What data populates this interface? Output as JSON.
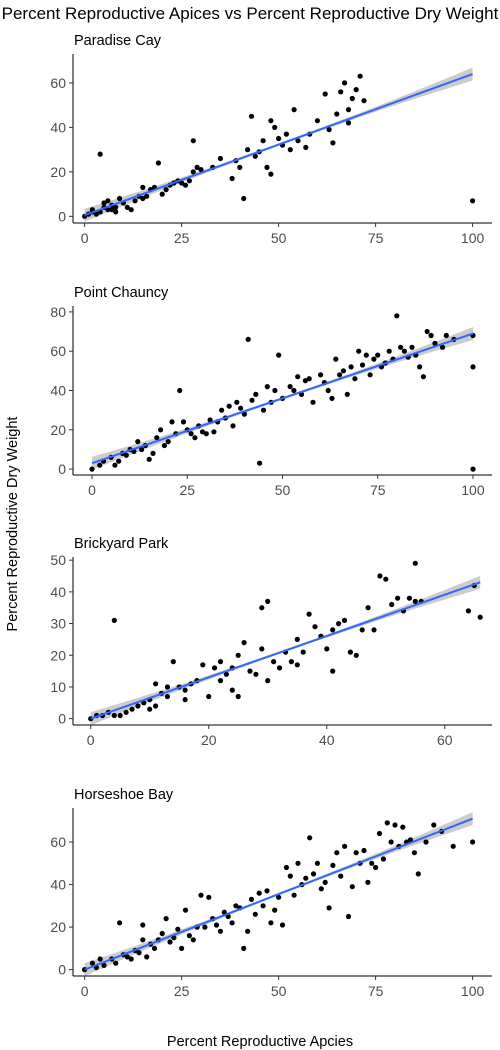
{
  "figure": {
    "title": "Percent Reproductive Apices vs Percent Reproductive Dry Weight",
    "xlabel": "Percent Reproductive Apcies",
    "ylabel": "Percent Reproductive Dry Weight"
  },
  "chart_data": [
    {
      "type": "scatter",
      "title": "Paradise Cay",
      "xlim": [
        -3,
        105
      ],
      "ylim": [
        -3,
        73
      ],
      "xticks": [
        0,
        25,
        50,
        75,
        100
      ],
      "yticks": [
        0,
        20,
        40,
        60
      ],
      "grid": false,
      "fit": {
        "method": "linear",
        "x": [
          0,
          100
        ],
        "y": [
          0.5,
          64
        ],
        "ci_band": true,
        "band_color": "#cccccc",
        "line_color": "#3366ff"
      },
      "point_color": "#000000",
      "points": [
        [
          0,
          0
        ],
        [
          1,
          1
        ],
        [
          2,
          2
        ],
        [
          3,
          1
        ],
        [
          4,
          2
        ],
        [
          2,
          3
        ],
        [
          5,
          4
        ],
        [
          6,
          3
        ],
        [
          7,
          5
        ],
        [
          8,
          4
        ],
        [
          5,
          6
        ],
        [
          6,
          7
        ],
        [
          9,
          8
        ],
        [
          10,
          6
        ],
        [
          11,
          4
        ],
        [
          12,
          3
        ],
        [
          7,
          3
        ],
        [
          8,
          2
        ],
        [
          4,
          28
        ],
        [
          13,
          7
        ],
        [
          14,
          9
        ],
        [
          15,
          13
        ],
        [
          16,
          9
        ],
        [
          17,
          12
        ],
        [
          18,
          13
        ],
        [
          19,
          24
        ],
        [
          15,
          8
        ],
        [
          20,
          10
        ],
        [
          21,
          12
        ],
        [
          22,
          14
        ],
        [
          23,
          15
        ],
        [
          24,
          16
        ],
        [
          25,
          15
        ],
        [
          26,
          14
        ],
        [
          27,
          16
        ],
        [
          28,
          20
        ],
        [
          28,
          34
        ],
        [
          29,
          22
        ],
        [
          30,
          21
        ],
        [
          33,
          22
        ],
        [
          35,
          26
        ],
        [
          38,
          17
        ],
        [
          39,
          25
        ],
        [
          40,
          22
        ],
        [
          41,
          8
        ],
        [
          42,
          30
        ],
        [
          43,
          45
        ],
        [
          44,
          27
        ],
        [
          45,
          29
        ],
        [
          46,
          34
        ],
        [
          47,
          22
        ],
        [
          48,
          19
        ],
        [
          48,
          43
        ],
        [
          49,
          40
        ],
        [
          50,
          35
        ],
        [
          51,
          32
        ],
        [
          52,
          37
        ],
        [
          53,
          30
        ],
        [
          54,
          48
        ],
        [
          55,
          34
        ],
        [
          57,
          31
        ],
        [
          58,
          37
        ],
        [
          60,
          43
        ],
        [
          62,
          55
        ],
        [
          63,
          39
        ],
        [
          64,
          33
        ],
        [
          65,
          46
        ],
        [
          66,
          56
        ],
        [
          67,
          60
        ],
        [
          68,
          48
        ],
        [
          68,
          42
        ],
        [
          69,
          53
        ],
        [
          70,
          57
        ],
        [
          71,
          63
        ],
        [
          72,
          52
        ],
        [
          100,
          7
        ]
      ]
    },
    {
      "type": "scatter",
      "title": "Point Chauncy",
      "xlim": [
        -5,
        105
      ],
      "ylim": [
        -3,
        83
      ],
      "xticks": [
        0,
        25,
        50,
        75,
        100
      ],
      "yticks": [
        0,
        20,
        40,
        60,
        80
      ],
      "grid": false,
      "fit": {
        "method": "linear",
        "x": [
          0,
          100
        ],
        "y": [
          3,
          69
        ],
        "ci_band": true,
        "band_color": "#cccccc",
        "line_color": "#3366ff"
      },
      "point_color": "#000000",
      "points": [
        [
          0,
          0
        ],
        [
          2,
          2
        ],
        [
          3,
          4
        ],
        [
          5,
          6
        ],
        [
          6,
          2
        ],
        [
          7,
          4
        ],
        [
          8,
          8
        ],
        [
          9,
          7
        ],
        [
          10,
          10
        ],
        [
          11,
          9
        ],
        [
          12,
          14
        ],
        [
          13,
          10
        ],
        [
          14,
          12
        ],
        [
          15,
          5
        ],
        [
          16,
          8
        ],
        [
          17,
          16
        ],
        [
          18,
          20
        ],
        [
          19,
          12
        ],
        [
          20,
          14
        ],
        [
          21,
          24
        ],
        [
          22,
          18
        ],
        [
          23,
          40
        ],
        [
          24,
          24
        ],
        [
          25,
          20
        ],
        [
          26,
          18
        ],
        [
          27,
          16
        ],
        [
          28,
          22
        ],
        [
          29,
          19
        ],
        [
          30,
          18
        ],
        [
          31,
          25
        ],
        [
          32,
          19
        ],
        [
          33,
          24
        ],
        [
          34,
          30
        ],
        [
          35,
          26
        ],
        [
          36,
          32
        ],
        [
          37,
          22
        ],
        [
          38,
          34
        ],
        [
          39,
          31
        ],
        [
          40,
          28
        ],
        [
          41,
          66
        ],
        [
          42,
          35
        ],
        [
          43,
          38
        ],
        [
          44,
          3
        ],
        [
          45,
          30
        ],
        [
          46,
          42
        ],
        [
          47,
          34
        ],
        [
          48,
          40
        ],
        [
          49,
          58
        ],
        [
          50,
          36
        ],
        [
          52,
          42
        ],
        [
          53,
          40
        ],
        [
          54,
          47
        ],
        [
          55,
          38
        ],
        [
          56,
          45
        ],
        [
          57,
          46
        ],
        [
          58,
          34
        ],
        [
          60,
          48
        ],
        [
          61,
          44
        ],
        [
          62,
          40
        ],
        [
          63,
          36
        ],
        [
          64,
          56
        ],
        [
          65,
          48
        ],
        [
          66,
          50
        ],
        [
          67,
          38
        ],
        [
          68,
          52
        ],
        [
          69,
          46
        ],
        [
          70,
          60
        ],
        [
          71,
          53
        ],
        [
          72,
          58
        ],
        [
          73,
          48
        ],
        [
          74,
          56
        ],
        [
          75,
          58
        ],
        [
          76,
          52
        ],
        [
          77,
          54
        ],
        [
          78,
          60
        ],
        [
          79,
          56
        ],
        [
          80,
          78
        ],
        [
          81,
          62
        ],
        [
          82,
          60
        ],
        [
          83,
          57
        ],
        [
          84,
          62
        ],
        [
          85,
          58
        ],
        [
          86,
          52
        ],
        [
          87,
          47
        ],
        [
          88,
          70
        ],
        [
          89,
          68
        ],
        [
          90,
          64
        ],
        [
          92,
          62
        ],
        [
          93,
          68
        ],
        [
          95,
          66
        ],
        [
          100,
          68
        ],
        [
          100,
          52
        ],
        [
          100,
          0
        ]
      ]
    },
    {
      "type": "scatter",
      "title": "Brickyard Park",
      "xlim": [
        -3,
        68
      ],
      "ylim": [
        -2,
        51
      ],
      "xticks": [
        0,
        20,
        40,
        60
      ],
      "yticks": [
        0,
        10,
        20,
        30,
        40,
        50
      ],
      "grid": false,
      "fit": {
        "method": "linear",
        "x": [
          0,
          66
        ],
        "y": [
          0,
          43
        ],
        "ci_band": true,
        "band_color": "#cccccc",
        "line_color": "#3366ff"
      },
      "point_color": "#000000",
      "points": [
        [
          0,
          0
        ],
        [
          1,
          1
        ],
        [
          2,
          1
        ],
        [
          3,
          2
        ],
        [
          4,
          1
        ],
        [
          5,
          1
        ],
        [
          4,
          31
        ],
        [
          6,
          2
        ],
        [
          7,
          3
        ],
        [
          8,
          4
        ],
        [
          9,
          5
        ],
        [
          10,
          6
        ],
        [
          10,
          3
        ],
        [
          11,
          4
        ],
        [
          11,
          11
        ],
        [
          12,
          8
        ],
        [
          13,
          7
        ],
        [
          13,
          10
        ],
        [
          14,
          18
        ],
        [
          15,
          10
        ],
        [
          16,
          6
        ],
        [
          16,
          9
        ],
        [
          17,
          11
        ],
        [
          18,
          12
        ],
        [
          19,
          17
        ],
        [
          20,
          7
        ],
        [
          21,
          16
        ],
        [
          22,
          12
        ],
        [
          22,
          18
        ],
        [
          23,
          14
        ],
        [
          24,
          16
        ],
        [
          24,
          9
        ],
        [
          25,
          20
        ],
        [
          25,
          7
        ],
        [
          26,
          24
        ],
        [
          27,
          15
        ],
        [
          28,
          14
        ],
        [
          29,
          22
        ],
        [
          29,
          35
        ],
        [
          30,
          37
        ],
        [
          30,
          12
        ],
        [
          31,
          18
        ],
        [
          32,
          16
        ],
        [
          33,
          21
        ],
        [
          34,
          18
        ],
        [
          35,
          25
        ],
        [
          35,
          17
        ],
        [
          36,
          21
        ],
        [
          37,
          33
        ],
        [
          38,
          29
        ],
        [
          39,
          26
        ],
        [
          40,
          22
        ],
        [
          41,
          15
        ],
        [
          41,
          28
        ],
        [
          42,
          30
        ],
        [
          43,
          31
        ],
        [
          44,
          21
        ],
        [
          45,
          20
        ],
        [
          46,
          28
        ],
        [
          47,
          35
        ],
        [
          48,
          28
        ],
        [
          49,
          45
        ],
        [
          50,
          44
        ],
        [
          51,
          36
        ],
        [
          52,
          38
        ],
        [
          53,
          34
        ],
        [
          54,
          38
        ],
        [
          55,
          37
        ],
        [
          55,
          49
        ],
        [
          56,
          37
        ],
        [
          64,
          34
        ],
        [
          65,
          42
        ],
        [
          66,
          32
        ]
      ]
    },
    {
      "type": "scatter",
      "title": "Horseshoe Bay",
      "xlim": [
        -3,
        105
      ],
      "ylim": [
        -3,
        76
      ],
      "xticks": [
        0,
        25,
        50,
        75,
        100
      ],
      "yticks": [
        0,
        20,
        40,
        60
      ],
      "grid": false,
      "fit": {
        "method": "linear",
        "x": [
          0,
          100
        ],
        "y": [
          0,
          71
        ],
        "ci_band": true,
        "band_color": "#cccccc",
        "line_color": "#3366ff"
      },
      "point_color": "#000000",
      "points": [
        [
          0,
          0
        ],
        [
          2,
          3
        ],
        [
          3,
          1
        ],
        [
          4,
          5
        ],
        [
          5,
          2
        ],
        [
          7,
          5
        ],
        [
          8,
          3
        ],
        [
          9,
          22
        ],
        [
          10,
          7
        ],
        [
          11,
          6
        ],
        [
          12,
          5
        ],
        [
          13,
          9
        ],
        [
          14,
          8
        ],
        [
          15,
          14
        ],
        [
          15,
          21
        ],
        [
          16,
          6
        ],
        [
          17,
          12
        ],
        [
          18,
          10
        ],
        [
          19,
          14
        ],
        [
          20,
          17
        ],
        [
          21,
          24
        ],
        [
          22,
          13
        ],
        [
          23,
          15
        ],
        [
          24,
          19
        ],
        [
          25,
          10
        ],
        [
          26,
          28
        ],
        [
          27,
          16
        ],
        [
          28,
          14
        ],
        [
          29,
          20
        ],
        [
          30,
          35
        ],
        [
          31,
          20
        ],
        [
          32,
          34
        ],
        [
          33,
          24
        ],
        [
          34,
          21
        ],
        [
          35,
          18
        ],
        [
          36,
          27
        ],
        [
          37,
          25
        ],
        [
          38,
          22
        ],
        [
          39,
          30
        ],
        [
          40,
          29
        ],
        [
          41,
          10
        ],
        [
          42,
          18
        ],
        [
          43,
          33
        ],
        [
          44,
          26
        ],
        [
          45,
          36
        ],
        [
          46,
          30
        ],
        [
          47,
          37
        ],
        [
          48,
          22
        ],
        [
          49,
          28
        ],
        [
          50,
          34
        ],
        [
          51,
          21
        ],
        [
          52,
          48
        ],
        [
          53,
          44
        ],
        [
          54,
          35
        ],
        [
          55,
          50
        ],
        [
          56,
          40
        ],
        [
          57,
          43
        ],
        [
          58,
          62
        ],
        [
          59,
          45
        ],
        [
          60,
          50
        ],
        [
          61,
          38
        ],
        [
          62,
          41
        ],
        [
          63,
          29
        ],
        [
          64,
          49
        ],
        [
          65,
          55
        ],
        [
          66,
          44
        ],
        [
          67,
          58
        ],
        [
          68,
          25
        ],
        [
          69,
          39
        ],
        [
          70,
          55
        ],
        [
          71,
          50
        ],
        [
          72,
          56
        ],
        [
          73,
          41
        ],
        [
          74,
          50
        ],
        [
          75,
          48
        ],
        [
          76,
          64
        ],
        [
          77,
          52
        ],
        [
          78,
          69
        ],
        [
          79,
          60
        ],
        [
          80,
          68
        ],
        [
          81,
          58
        ],
        [
          82,
          67
        ],
        [
          83,
          60
        ],
        [
          84,
          61
        ],
        [
          85,
          55
        ],
        [
          86,
          45
        ],
        [
          88,
          60
        ],
        [
          90,
          68
        ],
        [
          92,
          65
        ],
        [
          95,
          58
        ],
        [
          100,
          60
        ]
      ]
    }
  ]
}
